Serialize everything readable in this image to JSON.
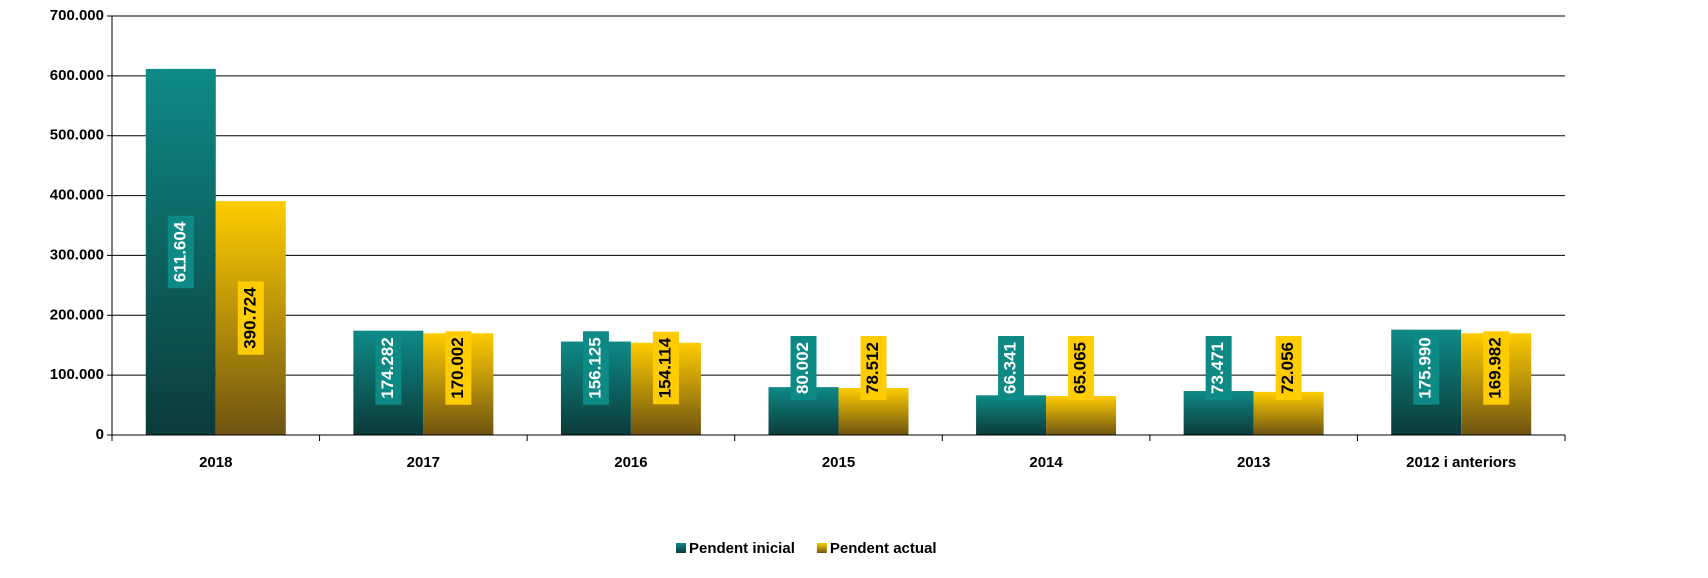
{
  "chart_data": {
    "type": "bar",
    "categories": [
      "2018",
      "2017",
      "2016",
      "2015",
      "2014",
      "2013",
      "2012 i anteriors"
    ],
    "series": [
      {
        "name": "Pendent inicial",
        "color": "#0e8a86",
        "values": [
          611604,
          174282,
          156125,
          80002,
          66341,
          73471,
          175990
        ],
        "value_labels": [
          "611.604",
          "174.282",
          "156.125",
          "80.002",
          "66.341",
          "73.471",
          "175.990"
        ]
      },
      {
        "name": "Pendent actual",
        "color": "#ffcc00",
        "values": [
          390724,
          170002,
          154114,
          78512,
          65065,
          72056,
          169982
        ],
        "value_labels": [
          "390.724",
          "170.002",
          "154.114",
          "78.512",
          "65.065",
          "72.056",
          "169.982"
        ]
      }
    ],
    "ylim": [
      0,
      700000
    ],
    "yticks": [
      0,
      {
        "value": 100000,
        "label": "100.000"
      },
      {
        "value": 200000,
        "label": "200.000"
      },
      {
        "value": 300000,
        "label": "300.000"
      },
      {
        "value": 400000,
        "label": "400.000"
      },
      {
        "value": 500000,
        "label": "500.000"
      },
      {
        "value": 600000,
        "label": "600.000"
      },
      {
        "value": 700000,
        "label": "700.000"
      }
    ],
    "grid": true,
    "legend": "bottom"
  }
}
